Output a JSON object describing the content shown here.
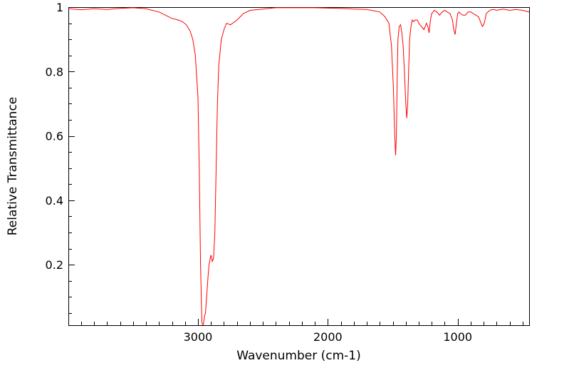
{
  "chart_data": {
    "type": "line",
    "xlabel": "Wavenumber (cm-1)",
    "ylabel": "Relative Transmittance",
    "xlim": [
      3998,
      450
    ],
    "ylim": [
      0.012,
      1.0
    ],
    "x_reversed": true,
    "grid": false,
    "legend": "none",
    "line_color": "#ff0000",
    "x_ticks": [
      {
        "value": 3000,
        "label": "3000"
      },
      {
        "value": 2000,
        "label": "2000"
      },
      {
        "value": 1000,
        "label": "1000"
      }
    ],
    "y_ticks": [
      {
        "value": 1.0,
        "label": "1"
      },
      {
        "value": 0.8,
        "label": "0.8"
      },
      {
        "value": 0.6,
        "label": "0.6"
      },
      {
        "value": 0.4,
        "label": "0.4"
      },
      {
        "value": 0.2,
        "label": "0.2"
      }
    ],
    "series": [
      {
        "x": [
          3998,
          3900,
          3800,
          3700,
          3600,
          3500,
          3400,
          3300,
          3200,
          3150,
          3120,
          3090,
          3060,
          3040,
          3020,
          3000,
          2990,
          2980,
          2970,
          2962,
          2958,
          2950,
          2942,
          2935,
          2925,
          2915,
          2900,
          2890,
          2880,
          2870,
          2860,
          2850,
          2840,
          2820,
          2800,
          2780,
          2750,
          2700,
          2650,
          2600,
          2500,
          2400,
          2300,
          2200,
          2100,
          2000,
          1900,
          1800,
          1700,
          1600,
          1560,
          1530,
          1510,
          1495,
          1485,
          1478,
          1472,
          1465,
          1460,
          1450,
          1440,
          1430,
          1420,
          1410,
          1400,
          1392,
          1385,
          1378,
          1370,
          1360,
          1350,
          1340,
          1330,
          1310,
          1300,
          1280,
          1260,
          1240,
          1230,
          1220,
          1210,
          1200,
          1180,
          1160,
          1140,
          1120,
          1100,
          1080,
          1060,
          1040,
          1030,
          1020,
          1010,
          1000,
          990,
          980,
          960,
          940,
          920,
          900,
          880,
          860,
          840,
          820,
          810,
          800,
          790,
          780,
          760,
          740,
          720,
          700,
          680,
          650,
          600,
          550,
          500,
          450
        ],
        "y": [
          0.995,
          0.992,
          0.995,
          0.993,
          0.996,
          0.998,
          0.995,
          0.985,
          0.965,
          0.96,
          0.955,
          0.945,
          0.925,
          0.9,
          0.85,
          0.72,
          0.5,
          0.2,
          0.02,
          0.012,
          0.015,
          0.04,
          0.05,
          0.09,
          0.15,
          0.2,
          0.23,
          0.21,
          0.22,
          0.3,
          0.5,
          0.7,
          0.82,
          0.9,
          0.93,
          0.95,
          0.945,
          0.96,
          0.98,
          0.99,
          0.994,
          0.998,
          0.998,
          0.998,
          0.998,
          0.997,
          0.996,
          0.994,
          0.993,
          0.985,
          0.97,
          0.95,
          0.88,
          0.75,
          0.6,
          0.54,
          0.6,
          0.8,
          0.9,
          0.94,
          0.945,
          0.92,
          0.88,
          0.8,
          0.7,
          0.655,
          0.7,
          0.8,
          0.9,
          0.94,
          0.96,
          0.955,
          0.96,
          0.96,
          0.95,
          0.94,
          0.93,
          0.95,
          0.94,
          0.92,
          0.96,
          0.98,
          0.99,
          0.985,
          0.975,
          0.985,
          0.99,
          0.985,
          0.98,
          0.96,
          0.93,
          0.915,
          0.95,
          0.98,
          0.985,
          0.98,
          0.975,
          0.975,
          0.985,
          0.985,
          0.98,
          0.975,
          0.97,
          0.95,
          0.94,
          0.945,
          0.96,
          0.98,
          0.988,
          0.992,
          0.993,
          0.99,
          0.992,
          0.994,
          0.99,
          0.993,
          0.99,
          0.985
        ]
      }
    ]
  }
}
